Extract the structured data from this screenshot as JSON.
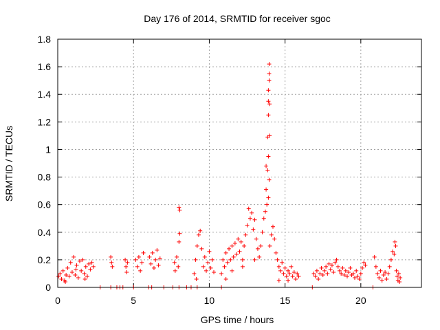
{
  "chart_data": {
    "type": "scatter",
    "title": "Day 176 of 2014, SRMTID for receiver sgoc",
    "xlabel": "GPS time / hours",
    "ylabel": "SRMTID / TECUs",
    "xlim": [
      0,
      24
    ],
    "ylim": [
      0,
      1.8
    ],
    "xticks": [
      0,
      5,
      10,
      15,
      20
    ],
    "xtick_labels": [
      "0",
      "5",
      "10",
      "15",
      "20"
    ],
    "yticks": [
      0,
      0.2,
      0.4,
      0.6,
      0.8,
      1.0,
      1.2,
      1.4,
      1.6,
      1.8
    ],
    "ytick_labels": [
      "0",
      "0.2",
      "0.4",
      "0.6",
      "0.8",
      "1",
      "1.2",
      "1.4",
      "1.6",
      "1.8"
    ],
    "grid": true,
    "marker": "+",
    "color": "#ff0000",
    "series": [
      {
        "name": "SRMTID",
        "points": [
          [
            0.05,
            0.08
          ],
          [
            0.15,
            0.1
          ],
          [
            0.25,
            0.06
          ],
          [
            0.35,
            0.12
          ],
          [
            0.45,
            0.05
          ],
          [
            0.55,
            0.09
          ],
          [
            0.65,
            0.14
          ],
          [
            0.75,
            0.08
          ],
          [
            0.85,
            0.18
          ],
          [
            0.95,
            0.11
          ],
          [
            1.05,
            0.22
          ],
          [
            1.15,
            0.09
          ],
          [
            1.25,
            0.16
          ],
          [
            1.35,
            0.07
          ],
          [
            1.45,
            0.19
          ],
          [
            1.55,
            0.12
          ],
          [
            1.65,
            0.2
          ],
          [
            1.75,
            0.1
          ],
          [
            1.85,
            0.15
          ],
          [
            1.95,
            0.08
          ],
          [
            2.05,
            0.17
          ],
          [
            2.15,
            0.13
          ],
          [
            2.25,
            0.18
          ],
          [
            2.35,
            0.15
          ],
          [
            0.5,
            0.04
          ],
          [
            1.2,
            0.13
          ],
          [
            1.8,
            0.06
          ],
          [
            2.8,
            0.0
          ],
          [
            3.5,
            0.0
          ],
          [
            3.9,
            0.0
          ],
          [
            4.1,
            0.0
          ],
          [
            4.3,
            0.0
          ],
          [
            5.0,
            0.0
          ],
          [
            6.0,
            0.0
          ],
          [
            6.2,
            0.0
          ],
          [
            7.0,
            0.0
          ],
          [
            7.6,
            0.0
          ],
          [
            8.0,
            0.0
          ],
          [
            8.5,
            0.0
          ],
          [
            8.8,
            0.0
          ],
          [
            9.2,
            0.0
          ],
          [
            10.8,
            0.0
          ],
          [
            16.8,
            0.0
          ],
          [
            20.8,
            0.0
          ],
          [
            3.5,
            0.22
          ],
          [
            3.55,
            0.18
          ],
          [
            3.6,
            0.15
          ],
          [
            4.45,
            0.2
          ],
          [
            4.5,
            0.15
          ],
          [
            4.55,
            0.11
          ],
          [
            4.6,
            0.18
          ],
          [
            5.15,
            0.2
          ],
          [
            5.25,
            0.15
          ],
          [
            5.35,
            0.22
          ],
          [
            5.45,
            0.12
          ],
          [
            5.55,
            0.18
          ],
          [
            5.65,
            0.25
          ],
          [
            6.05,
            0.22
          ],
          [
            6.15,
            0.17
          ],
          [
            6.25,
            0.25
          ],
          [
            6.35,
            0.14
          ],
          [
            6.45,
            0.2
          ],
          [
            6.55,
            0.27
          ],
          [
            6.65,
            0.16
          ],
          [
            6.75,
            0.21
          ],
          [
            7.7,
            0.18
          ],
          [
            7.75,
            0.12
          ],
          [
            7.85,
            0.22
          ],
          [
            7.95,
            0.15
          ],
          [
            8.0,
            0.58
          ],
          [
            8.05,
            0.56
          ],
          [
            8.05,
            0.39
          ],
          [
            8.0,
            0.33
          ],
          [
            9.0,
            0.1
          ],
          [
            9.1,
            0.2
          ],
          [
            9.2,
            0.3
          ],
          [
            9.3,
            0.38
          ],
          [
            9.4,
            0.41
          ],
          [
            9.5,
            0.28
          ],
          [
            9.6,
            0.15
          ],
          [
            9.7,
            0.22
          ],
          [
            9.8,
            0.12
          ],
          [
            9.9,
            0.18
          ],
          [
            10.0,
            0.26
          ],
          [
            10.1,
            0.14
          ],
          [
            10.2,
            0.2
          ],
          [
            10.3,
            0.11
          ],
          [
            9.15,
            0.06
          ],
          [
            10.8,
            0.1
          ],
          [
            10.9,
            0.2
          ],
          [
            11.0,
            0.15
          ],
          [
            11.1,
            0.25
          ],
          [
            11.2,
            0.18
          ],
          [
            11.3,
            0.28
          ],
          [
            11.4,
            0.2
          ],
          [
            11.5,
            0.3
          ],
          [
            11.6,
            0.22
          ],
          [
            11.7,
            0.32
          ],
          [
            11.8,
            0.24
          ],
          [
            11.9,
            0.35
          ],
          [
            12.0,
            0.26
          ],
          [
            12.1,
            0.33
          ],
          [
            12.2,
            0.2
          ],
          [
            12.3,
            0.3
          ],
          [
            12.4,
            0.38
          ],
          [
            12.5,
            0.45
          ],
          [
            12.6,
            0.57
          ],
          [
            12.7,
            0.5
          ],
          [
            12.8,
            0.54
          ],
          [
            12.9,
            0.42
          ],
          [
            13.0,
            0.49
          ],
          [
            13.1,
            0.35
          ],
          [
            13.2,
            0.28
          ],
          [
            13.3,
            0.22
          ],
          [
            13.4,
            0.3
          ],
          [
            13.5,
            0.4
          ],
          [
            13.6,
            0.5
          ],
          [
            13.7,
            0.55
          ],
          [
            11.1,
            0.06
          ],
          [
            11.5,
            0.12
          ],
          [
            12.2,
            0.15
          ],
          [
            13.0,
            0.2
          ],
          [
            13.75,
            0.71
          ],
          [
            13.75,
            0.88
          ],
          [
            13.8,
            0.6
          ],
          [
            13.85,
            0.85
          ],
          [
            13.85,
            1.09
          ],
          [
            13.9,
            1.43
          ],
          [
            13.9,
            1.25
          ],
          [
            13.95,
            1.62
          ],
          [
            13.95,
            1.55
          ],
          [
            13.98,
            1.33
          ],
          [
            13.9,
            0.95
          ],
          [
            13.95,
            0.78
          ],
          [
            13.9,
            0.65
          ],
          [
            13.95,
            1.5
          ],
          [
            13.98,
            1.1
          ],
          [
            13.9,
            1.35
          ],
          [
            14.0,
            0.3
          ],
          [
            14.1,
            0.38
          ],
          [
            14.2,
            0.44
          ],
          [
            14.3,
            0.35
          ],
          [
            14.4,
            0.25
          ],
          [
            14.5,
            0.2
          ],
          [
            14.6,
            0.15
          ],
          [
            14.7,
            0.12
          ],
          [
            14.8,
            0.18
          ],
          [
            14.9,
            0.1
          ],
          [
            15.0,
            0.14
          ],
          [
            15.1,
            0.08
          ],
          [
            15.2,
            0.12
          ],
          [
            15.3,
            0.1
          ],
          [
            15.4,
            0.15
          ],
          [
            15.5,
            0.08
          ],
          [
            15.6,
            0.11
          ],
          [
            15.7,
            0.06
          ],
          [
            15.8,
            0.1
          ],
          [
            15.9,
            0.08
          ],
          [
            14.6,
            0.05
          ],
          [
            15.2,
            0.05
          ],
          [
            16.9,
            0.1
          ],
          [
            17.0,
            0.08
          ],
          [
            17.1,
            0.12
          ],
          [
            17.2,
            0.06
          ],
          [
            17.3,
            0.1
          ],
          [
            17.4,
            0.14
          ],
          [
            17.5,
            0.09
          ],
          [
            17.6,
            0.12
          ],
          [
            17.7,
            0.15
          ],
          [
            17.8,
            0.1
          ],
          [
            17.9,
            0.17
          ],
          [
            18.0,
            0.13
          ],
          [
            18.1,
            0.16
          ],
          [
            18.2,
            0.11
          ],
          [
            18.3,
            0.18
          ],
          [
            18.4,
            0.2
          ],
          [
            18.5,
            0.15
          ],
          [
            18.6,
            0.12
          ],
          [
            18.7,
            0.1
          ],
          [
            18.8,
            0.14
          ],
          [
            18.9,
            0.09
          ],
          [
            19.0,
            0.12
          ],
          [
            19.1,
            0.08
          ],
          [
            19.2,
            0.11
          ],
          [
            19.3,
            0.14
          ],
          [
            19.4,
            0.09
          ],
          [
            19.5,
            0.1
          ],
          [
            19.6,
            0.07
          ],
          [
            19.7,
            0.12
          ],
          [
            19.8,
            0.08
          ],
          [
            19.9,
            0.06
          ],
          [
            20.0,
            0.1
          ],
          [
            20.1,
            0.14
          ],
          [
            20.2,
            0.18
          ],
          [
            20.3,
            0.16
          ],
          [
            20.9,
            0.22
          ],
          [
            21.0,
            0.15
          ],
          [
            21.1,
            0.1
          ],
          [
            21.2,
            0.07
          ],
          [
            21.3,
            0.12
          ],
          [
            21.4,
            0.05
          ],
          [
            21.5,
            0.09
          ],
          [
            21.6,
            0.11
          ],
          [
            21.7,
            0.06
          ],
          [
            21.8,
            0.1
          ],
          [
            21.9,
            0.15
          ],
          [
            22.0,
            0.2
          ],
          [
            22.1,
            0.26
          ],
          [
            22.2,
            0.24
          ],
          [
            22.25,
            0.33
          ],
          [
            22.3,
            0.3
          ],
          [
            22.35,
            0.12
          ],
          [
            22.4,
            0.08
          ],
          [
            22.45,
            0.05
          ],
          [
            22.5,
            0.1
          ],
          [
            22.6,
            0.07
          ],
          [
            22.55,
            0.04
          ]
        ]
      }
    ]
  }
}
